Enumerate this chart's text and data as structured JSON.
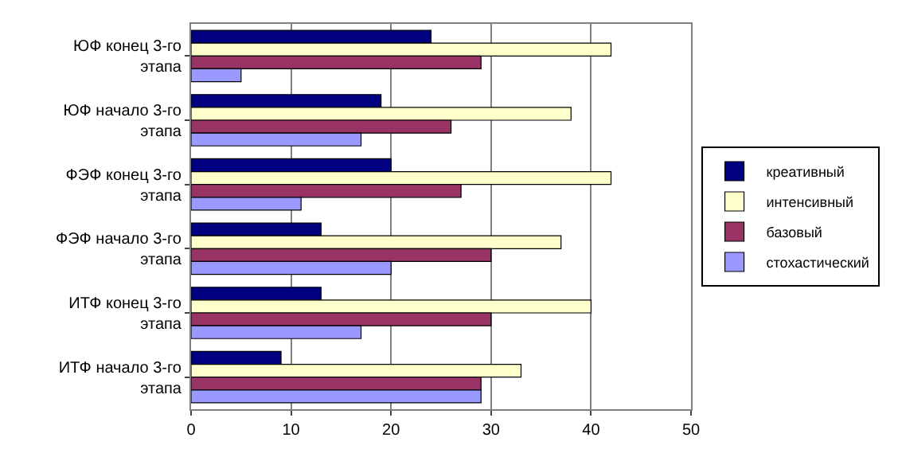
{
  "chart_data": {
    "type": "bar",
    "orientation": "horizontal",
    "categories": [
      "ЮФ конец 3-го этапа",
      "ЮФ начало 3-го этапа",
      "ФЭФ конец 3-го этапа",
      "ФЭФ начало 3-го этапа",
      "ИТФ конец 3-го этапа",
      "ИТФ начало 3-го этапа"
    ],
    "series": [
      {
        "name": "креативный",
        "color": "#000080",
        "values": [
          24,
          19,
          20,
          13,
          13,
          9
        ]
      },
      {
        "name": "интенсивный",
        "color": "#ffffcc",
        "values": [
          42,
          38,
          42,
          37,
          40,
          33
        ]
      },
      {
        "name": "базовый",
        "color": "#993366",
        "values": [
          29,
          26,
          27,
          30,
          30,
          29
        ]
      },
      {
        "name": "стохастический",
        "color": "#9999ff",
        "values": [
          5,
          17,
          11,
          20,
          17,
          29
        ]
      }
    ],
    "xlim": [
      0,
      50
    ],
    "xticks": [
      0,
      10,
      20,
      30,
      40,
      50
    ],
    "grid": "x",
    "legend": "right"
  }
}
